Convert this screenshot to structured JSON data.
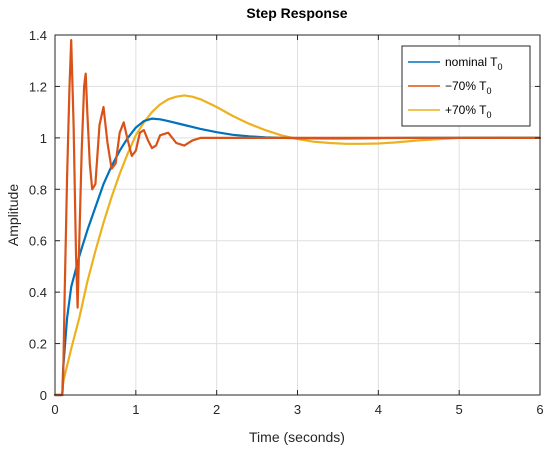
{
  "chart_data": {
    "type": "line",
    "title": "Step Response",
    "xlabel": "Time (seconds)",
    "ylabel": "Amplitude",
    "xlim": [
      0,
      6
    ],
    "ylim": [
      0,
      1.4
    ],
    "xticks": [
      0,
      1,
      2,
      3,
      4,
      5,
      6
    ],
    "xtick_labels": [
      "0",
      "1",
      "2",
      "3",
      "4",
      "5",
      "6"
    ],
    "yticks": [
      0,
      0.2,
      0.4,
      0.6,
      0.8,
      1,
      1.2,
      1.4
    ],
    "ytick_labels": [
      "0",
      "0.2",
      "0.4",
      "0.6",
      "0.8",
      "1",
      "1.2",
      "1.4"
    ],
    "grid": true,
    "legend_position": "top-right",
    "series": [
      {
        "name": "nominal T0",
        "legend_main": "nominal T",
        "legend_sub": "0",
        "color": "#0072bd",
        "x": [
          0,
          0.09,
          0.1,
          0.15,
          0.2,
          0.3,
          0.4,
          0.5,
          0.6,
          0.7,
          0.8,
          0.9,
          1.0,
          1.1,
          1.2,
          1.3,
          1.4,
          1.6,
          1.8,
          2.0,
          2.2,
          2.4,
          2.6,
          2.8,
          3.0,
          3.3,
          3.6,
          4.0,
          4.5,
          5.0,
          5.5,
          6.0
        ],
        "y": [
          0,
          0,
          0.1,
          0.3,
          0.42,
          0.54,
          0.64,
          0.73,
          0.82,
          0.89,
          0.95,
          1.0,
          1.04,
          1.065,
          1.075,
          1.072,
          1.065,
          1.05,
          1.035,
          1.022,
          1.012,
          1.006,
          1.002,
          1.0,
          0.999,
          0.998,
          0.998,
          0.999,
          1.0,
          1.0,
          1.0,
          1.0
        ]
      },
      {
        "name": "−70% T0",
        "legend_main": "−70% T",
        "legend_sub": "0",
        "color": "#d95319",
        "x": [
          0,
          0.09,
          0.1,
          0.12,
          0.15,
          0.18,
          0.2,
          0.23,
          0.26,
          0.28,
          0.3,
          0.33,
          0.36,
          0.38,
          0.4,
          0.43,
          0.46,
          0.5,
          0.55,
          0.6,
          0.65,
          0.7,
          0.75,
          0.8,
          0.85,
          0.9,
          0.95,
          1.0,
          1.05,
          1.1,
          1.15,
          1.2,
          1.25,
          1.3,
          1.4,
          1.5,
          1.6,
          1.7,
          1.8,
          1.9,
          2.0,
          2.2,
          2.5,
          3.0,
          4.0,
          5.0,
          6.0
        ],
        "y": [
          0,
          0,
          0.05,
          0.4,
          0.85,
          1.2,
          1.38,
          1.05,
          0.55,
          0.34,
          0.6,
          0.95,
          1.2,
          1.25,
          1.1,
          0.9,
          0.8,
          0.82,
          1.05,
          1.12,
          0.98,
          0.88,
          0.9,
          1.02,
          1.06,
          0.99,
          0.93,
          0.95,
          1.02,
          1.03,
          0.99,
          0.96,
          0.97,
          1.01,
          1.02,
          0.98,
          0.97,
          0.99,
          1.0,
          1.0,
          1.0,
          1.0,
          1.0,
          1.0,
          1.0,
          1.0,
          1.0
        ]
      },
      {
        "name": "+70% T0",
        "legend_main": "+70% T",
        "legend_sub": "0",
        "color": "#edb120",
        "x": [
          0,
          0.09,
          0.1,
          0.2,
          0.3,
          0.4,
          0.5,
          0.6,
          0.7,
          0.8,
          0.9,
          1.0,
          1.1,
          1.2,
          1.3,
          1.4,
          1.5,
          1.6,
          1.7,
          1.8,
          1.9,
          2.0,
          2.2,
          2.4,
          2.6,
          2.8,
          3.0,
          3.2,
          3.4,
          3.6,
          3.8,
          4.0,
          4.2,
          4.5,
          5.0,
          5.5,
          6.0
        ],
        "y": [
          0,
          0,
          0.05,
          0.18,
          0.3,
          0.44,
          0.56,
          0.67,
          0.77,
          0.86,
          0.94,
          1.01,
          1.06,
          1.1,
          1.13,
          1.15,
          1.16,
          1.165,
          1.16,
          1.15,
          1.135,
          1.12,
          1.085,
          1.055,
          1.03,
          1.01,
          0.995,
          0.985,
          0.98,
          0.977,
          0.977,
          0.978,
          0.982,
          0.99,
          1.0,
          1.001,
          1.0
        ]
      }
    ]
  }
}
